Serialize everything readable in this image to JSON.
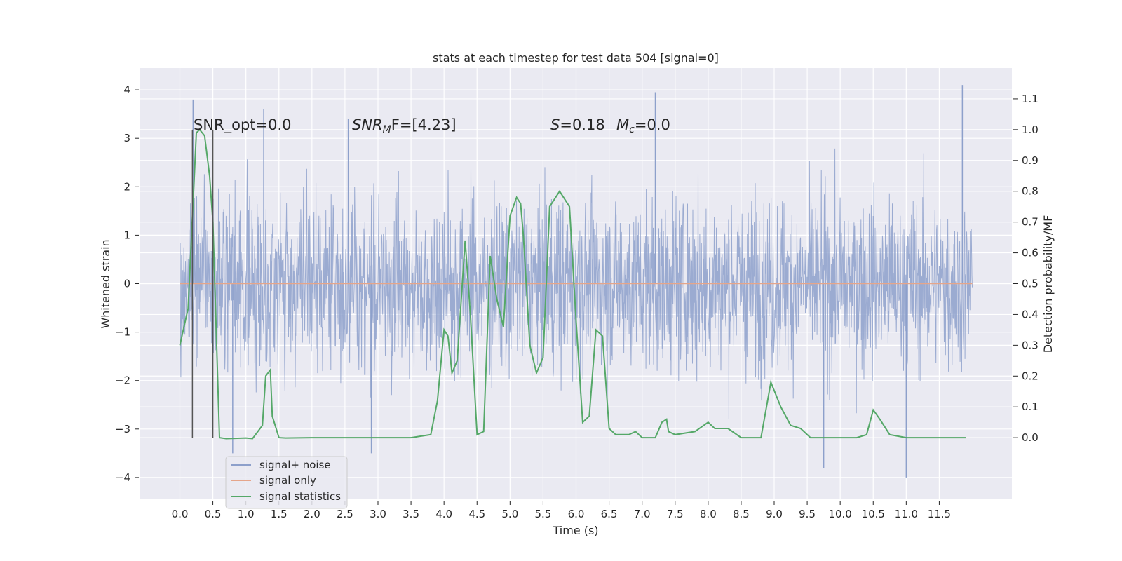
{
  "chart_data": {
    "type": "line",
    "title": "stats at each timestep for test data 504 [signal=0]",
    "xlabel": "Time (s)",
    "ylabel": "Whitened strain",
    "ylabel_right": "Detection probability/MF",
    "xlim": [
      -0.6,
      12.6
    ],
    "ylim": [
      -4.45,
      4.45
    ],
    "ylim_right": [
      -0.2,
      1.2
    ],
    "x_ticks": [
      0.0,
      0.5,
      1.0,
      1.5,
      2.0,
      2.5,
      3.0,
      3.5,
      4.0,
      4.5,
      5.0,
      5.5,
      6.0,
      6.5,
      7.0,
      7.5,
      8.0,
      8.5,
      9.0,
      9.5,
      10.0,
      10.5,
      11.0,
      11.5
    ],
    "y_ticks": [
      -4,
      -3,
      -2,
      -1,
      0,
      1,
      2,
      3,
      4
    ],
    "y_ticks_right": [
      0.0,
      0.1,
      0.2,
      0.3,
      0.4,
      0.5,
      0.6,
      0.7,
      0.8,
      0.9,
      1.0,
      1.1
    ],
    "grid": true,
    "legend_position": "lower-left",
    "annotations": {
      "snr_opt": "SNR_opt=0.0",
      "snr_mf_prefix": "SNR",
      "snr_mf_sub": "M",
      "snr_mf_suffix": "F=[4.23]",
      "s_prefix": "S",
      "s_value": "=0.18",
      "mc_prefix": "M",
      "mc_sub": "c",
      "mc_value": "=0.0"
    },
    "vertical_markers": [
      0.19,
      0.5
    ],
    "series": [
      {
        "name": "signal+ noise",
        "color": "#8da0cb",
        "description_range": [
          -4.0,
          4.1
        ],
        "t_start": 0.0,
        "t_end": 12.0,
        "sample_spikes": [
          {
            "t": 0.2,
            "v": 3.8
          },
          {
            "t": 1.27,
            "v": 3.6
          },
          {
            "t": 2.55,
            "v": 3.4
          },
          {
            "t": 7.2,
            "v": 3.95
          },
          {
            "t": 11.85,
            "v": 4.1
          },
          {
            "t": 11.0,
            "v": -4.0
          },
          {
            "t": 9.75,
            "v": -3.8
          },
          {
            "t": 2.9,
            "v": -3.5
          },
          {
            "t": 0.8,
            "v": -3.5
          }
        ]
      },
      {
        "name": "signal only",
        "color": "#e5a58a",
        "x": [
          0.0,
          12.0
        ],
        "y": [
          0.0,
          0.0
        ]
      },
      {
        "name": "signal statistics",
        "color": "#55a868",
        "axis": "right",
        "x": [
          0.0,
          0.125,
          0.25,
          0.3,
          0.375,
          0.45,
          0.5,
          0.6,
          0.7,
          1.0,
          1.1,
          1.25,
          1.3,
          1.37,
          1.4,
          1.5,
          1.6,
          2.0,
          2.5,
          3.0,
          3.5,
          3.8,
          3.9,
          4.0,
          4.06,
          4.12,
          4.2,
          4.32,
          4.4,
          4.5,
          4.6,
          4.7,
          4.8,
          4.9,
          5.0,
          5.1,
          5.16,
          5.2,
          5.3,
          5.4,
          5.5,
          5.6,
          5.75,
          5.9,
          6.0,
          6.1,
          6.2,
          6.3,
          6.4,
          6.5,
          6.6,
          6.8,
          6.9,
          7.0,
          7.1,
          7.2,
          7.3,
          7.37,
          7.4,
          7.5,
          7.8,
          8.0,
          8.1,
          8.3,
          8.5,
          8.8,
          8.95,
          9.1,
          9.25,
          9.4,
          9.55,
          10.0,
          10.25,
          10.4,
          10.5,
          10.6,
          10.75,
          11.0,
          11.5,
          11.9
        ],
        "y": [
          0.3,
          0.42,
          0.99,
          1.0,
          0.98,
          0.85,
          0.7,
          0.0,
          -0.003,
          -0.001,
          -0.003,
          0.04,
          0.2,
          0.22,
          0.07,
          0.0,
          -0.001,
          0.0,
          0.0,
          0.0,
          0.0,
          0.01,
          0.12,
          0.35,
          0.33,
          0.21,
          0.25,
          0.64,
          0.4,
          0.01,
          0.02,
          0.59,
          0.45,
          0.36,
          0.72,
          0.78,
          0.76,
          0.66,
          0.3,
          0.21,
          0.26,
          0.75,
          0.8,
          0.75,
          0.38,
          0.05,
          0.07,
          0.35,
          0.33,
          0.03,
          0.01,
          0.01,
          0.02,
          0.0,
          0.0,
          0.0,
          0.05,
          0.06,
          0.02,
          0.01,
          0.02,
          0.05,
          0.03,
          0.03,
          0.0,
          0.0,
          0.18,
          0.1,
          0.04,
          0.03,
          0.0,
          0.0,
          0.0,
          0.01,
          0.09,
          0.06,
          0.01,
          0.0,
          0.0,
          0.0
        ]
      }
    ]
  }
}
